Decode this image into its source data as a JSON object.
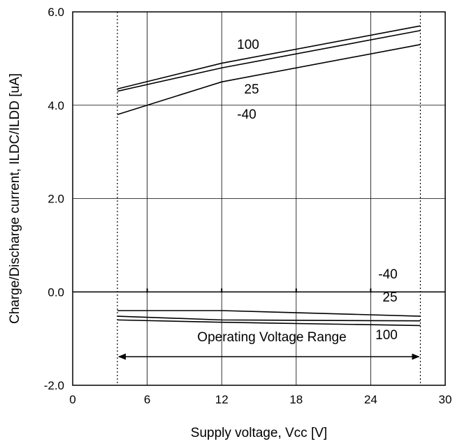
{
  "chart_data": {
    "type": "line",
    "xlabel": "Supply voltage, Vcc [V]",
    "ylabel": "Charge/Discharge current, ILDC/ILDD [uA]",
    "xlim": [
      0,
      30
    ],
    "ylim": [
      -2.0,
      6.0
    ],
    "x_ticks": [
      "0",
      "6",
      "12",
      "18",
      "24",
      "30"
    ],
    "y_ticks": [
      "-2.0",
      "0.0",
      "2.0",
      "4.0",
      "6.0"
    ],
    "grid": true,
    "series": [
      {
        "name": "100",
        "group": "charge",
        "x": [
          3.6,
          12,
          28
        ],
        "y": [
          4.35,
          4.9,
          5.7
        ]
      },
      {
        "name": "25",
        "group": "charge",
        "x": [
          3.6,
          12,
          28
        ],
        "y": [
          4.3,
          4.8,
          5.6
        ]
      },
      {
        "name": "-40",
        "group": "charge",
        "x": [
          3.6,
          12,
          28
        ],
        "y": [
          3.8,
          4.5,
          5.3
        ]
      },
      {
        "name": "-40",
        "group": "discharge",
        "x": [
          3.6,
          12,
          28
        ],
        "y": [
          -0.4,
          -0.4,
          -0.52
        ]
      },
      {
        "name": "25",
        "group": "discharge",
        "x": [
          3.6,
          12,
          28
        ],
        "y": [
          -0.52,
          -0.6,
          -0.62
        ]
      },
      {
        "name": "100",
        "group": "discharge",
        "x": [
          3.6,
          12,
          28
        ],
        "y": [
          -0.6,
          -0.65,
          -0.72
        ]
      }
    ],
    "annotations": {
      "operating_range_label": "Operating Voltage Range",
      "operating_range": [
        3.6,
        28
      ]
    }
  }
}
